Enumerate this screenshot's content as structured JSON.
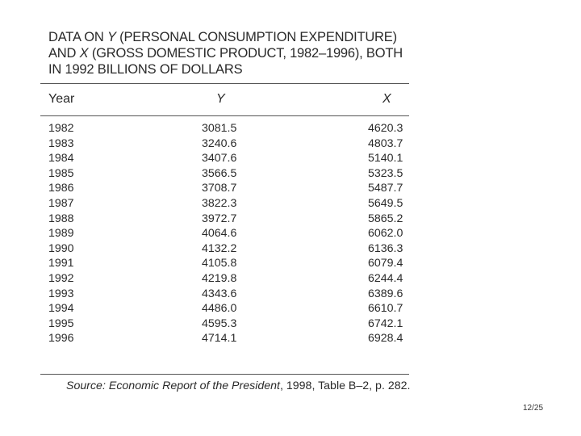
{
  "title": {
    "line1": "DATA ON Y (PERSONAL CONSUMPTION EXPENDITURE)",
    "line2": "AND X (GROSS DOMESTIC PRODUCT, 1982–1996), BOTH",
    "line3": "IN 1992 BILLIONS OF DOLLARS"
  },
  "table": {
    "columns": [
      "Year",
      "Y",
      "X"
    ],
    "rows": [
      [
        "1982",
        "3081.5",
        "4620.3"
      ],
      [
        "1983",
        "3240.6",
        "4803.7"
      ],
      [
        "1984",
        "3407.6",
        "5140.1"
      ],
      [
        "1985",
        "3566.5",
        "5323.5"
      ],
      [
        "1986",
        "3708.7",
        "5487.7"
      ],
      [
        "1987",
        "3822.3",
        "5649.5"
      ],
      [
        "1988",
        "3972.7",
        "5865.2"
      ],
      [
        "1989",
        "4064.6",
        "6062.0"
      ],
      [
        "1990",
        "4132.2",
        "6136.3"
      ],
      [
        "1991",
        "4105.8",
        "6079.4"
      ],
      [
        "1992",
        "4219.8",
        "6244.4"
      ],
      [
        "1993",
        "4343.6",
        "6389.6"
      ],
      [
        "1994",
        "4486.0",
        "6610.7"
      ],
      [
        "1995",
        "4595.3",
        "6742.1"
      ],
      [
        "1996",
        "4714.1",
        "6928.4"
      ]
    ]
  },
  "source": {
    "label": "Source:",
    "title": "Economic Report of the President",
    "rest": ", 1998, Table B–2, p. 282."
  },
  "page_number": "12/25"
}
